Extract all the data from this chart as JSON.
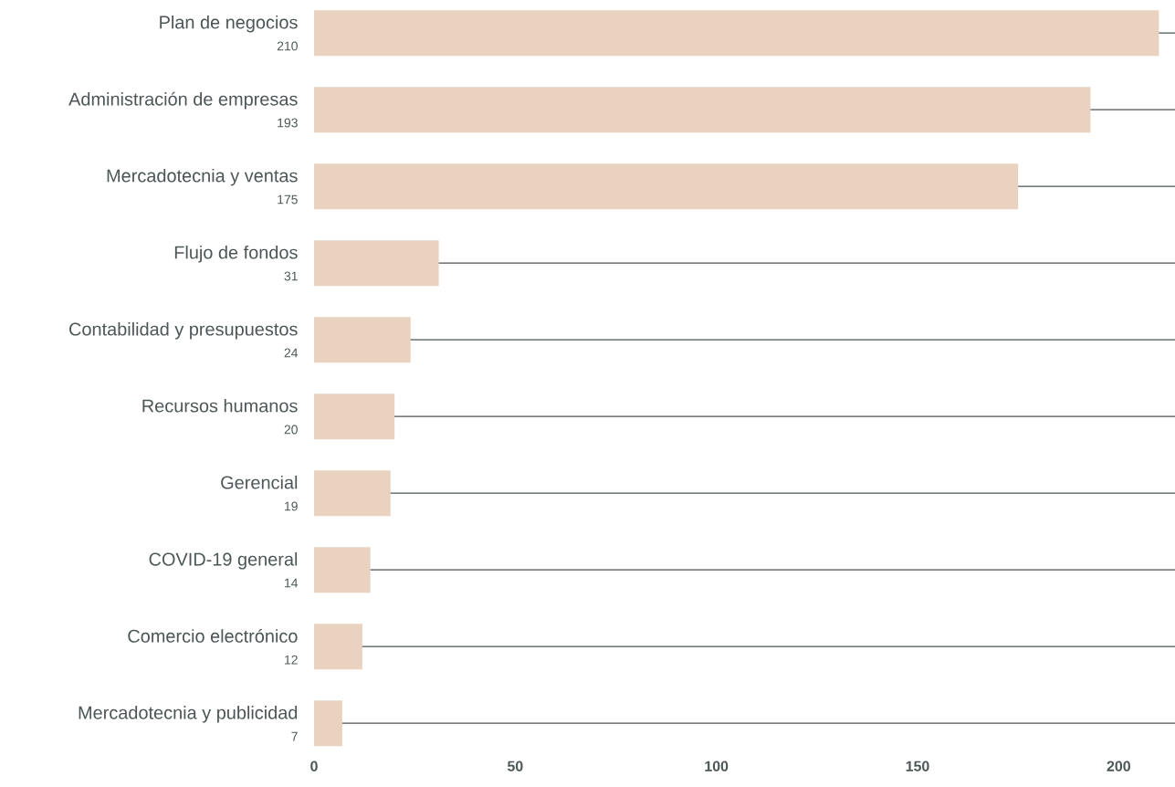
{
  "chart_data": {
    "type": "bar",
    "orientation": "horizontal",
    "categories": [
      "Plan de negocios",
      "Administración de empresas",
      "Mercadotecnia y ventas",
      "Flujo de fondos",
      "Contabilidad y presupuestos",
      "Recursos humanos",
      "Gerencial",
      "COVID-19 general",
      "Comercio electrónico",
      "Mercadotecnia y publicidad"
    ],
    "values": [
      210,
      193,
      175,
      31,
      24,
      20,
      19,
      14,
      12,
      7
    ],
    "color": "#e9d2c0",
    "xlim": [
      0,
      214
    ],
    "xticks": [
      0,
      50,
      100,
      150,
      200
    ],
    "data_labels": true,
    "grid": "y"
  }
}
